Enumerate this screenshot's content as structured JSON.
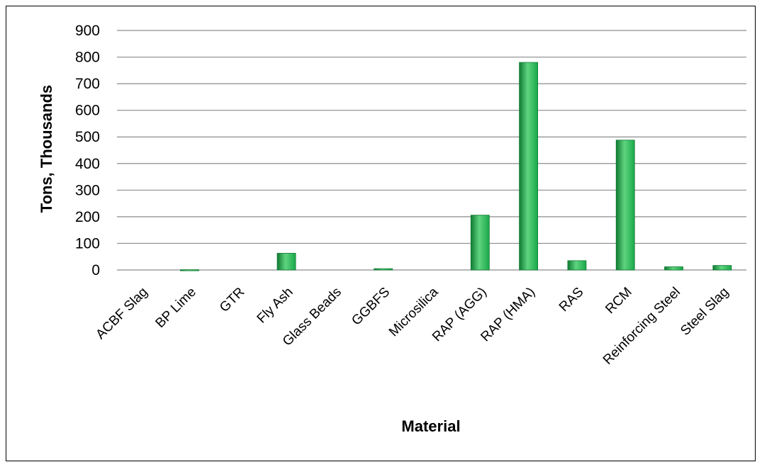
{
  "chart_data": {
    "type": "bar",
    "title": "",
    "xlabel": "Material",
    "ylabel": "Tons, Thousands",
    "categories": [
      "ACBF Slag",
      "BP Lime",
      "GTR",
      "Fly Ash",
      "Glass Beads",
      "GGBFS",
      "Microsilica",
      "RAP (AGG)",
      "RAP (HMA)",
      "RAS",
      "RCM",
      "Reinforcing Steel",
      "Steel Slag"
    ],
    "values": [
      0,
      1,
      0,
      63,
      0,
      5,
      0,
      206,
      780,
      35,
      488,
      12,
      17
    ],
    "ylim": [
      0,
      900
    ],
    "yticks": [
      "0",
      "100",
      "200",
      "300",
      "400",
      "500",
      "600",
      "700",
      "800",
      "900"
    ],
    "grid": true,
    "legend": "none",
    "bar_color": "#1aa84a",
    "bar_color_light": "#5fd47f",
    "bar_color_dark": "#0f7a33"
  }
}
